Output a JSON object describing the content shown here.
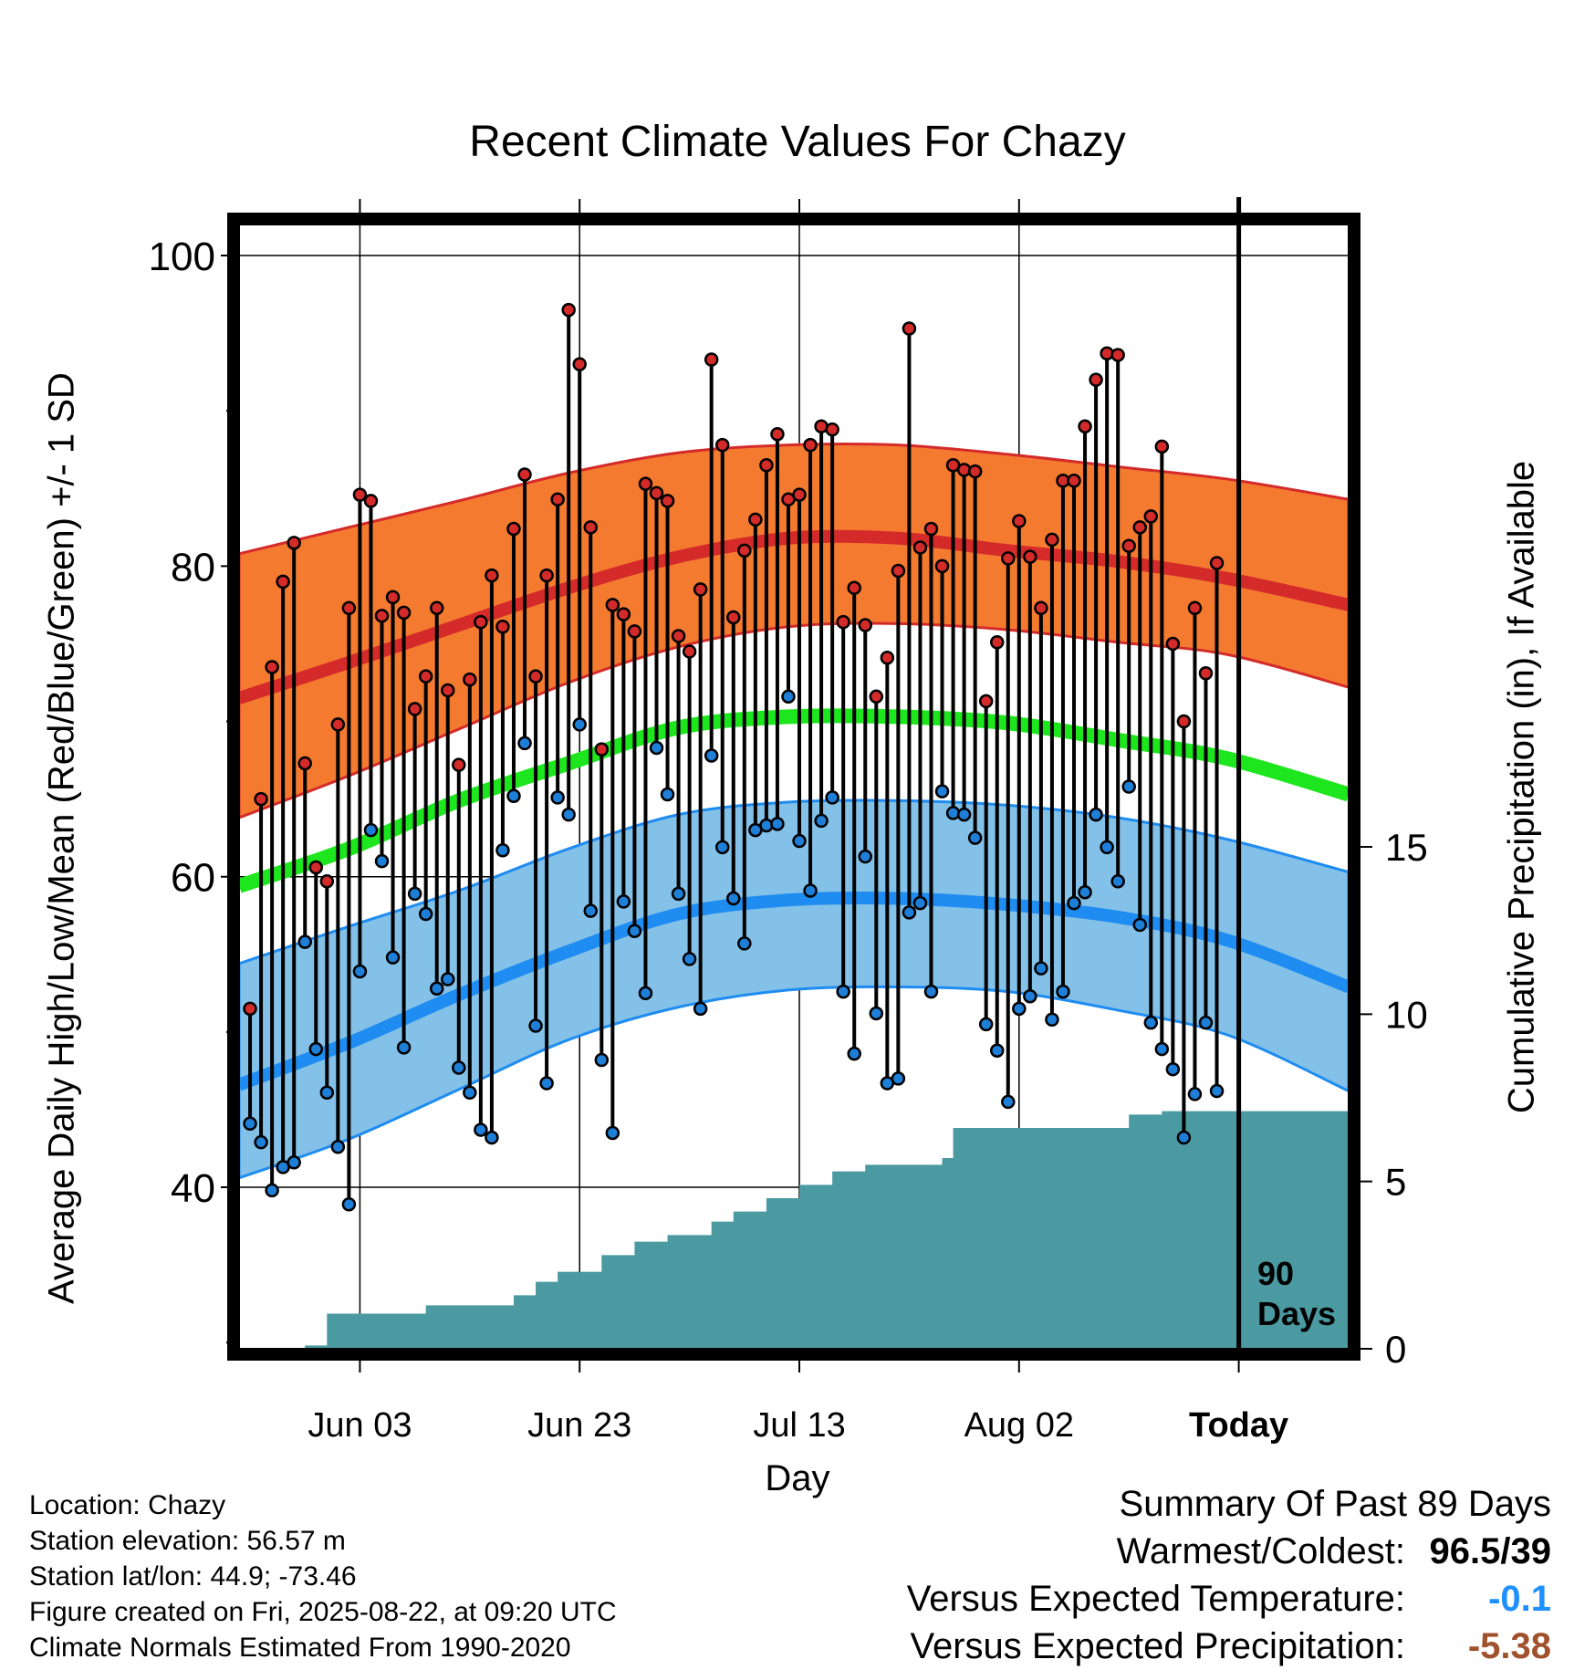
{
  "title": "Recent Climate Values For Chazy",
  "y_axis_left_label": "Average Daily High/Low/Mean (Red/Blue/Green) +/- 1 SD",
  "y_axis_right_label": "Cumulative Precipitation (in), If Available",
  "x_axis_label": "Day",
  "today_marker_label": "90 Days",
  "location_info": [
    "Location: Chazy",
    "Station elevation: 56.57 m",
    "Station lat/lon: 44.9; -73.46",
    "Figure created on Fri, 2025-08-22, at 09:20 UTC",
    "Climate Normals Estimated From 1990-2020"
  ],
  "summary": {
    "heading": "Summary Of Past 89 Days",
    "warmest_coldest_label": "Warmest/Coldest:",
    "warmest_coldest_value": "96.5/39",
    "temp_label": "Versus Expected Temperature:",
    "temp_value": "-0.1",
    "temp_color": "#1e90ff",
    "precip_label": "Versus Expected Precipitation:",
    "precip_value": "-5.38",
    "precip_color": "#a0522d"
  },
  "colors": {
    "high_band": "#f47a30",
    "high_line": "#d42a2a",
    "low_band": "#84c1e8",
    "low_line": "#1e8cf0",
    "mean_line": "#1ee61e",
    "precip_fill": "#4b9aa2",
    "high_point": "#d42a2a",
    "low_point": "#1e7fd8"
  },
  "chart_data": {
    "type": "line",
    "x_axis": {
      "start_date": "2025-05-23",
      "end_date": "2025-09-01",
      "ticks": [
        {
          "label": "Jun 03",
          "date": "2025-06-03"
        },
        {
          "label": "Jun 23",
          "date": "2025-06-23"
        },
        {
          "label": "Jul 13",
          "date": "2025-07-13"
        },
        {
          "label": "Aug 02",
          "date": "2025-08-02"
        },
        {
          "label": "Today",
          "date": "2025-08-22"
        }
      ],
      "today": "2025-08-22"
    },
    "y_axis_left": {
      "ylim": [
        29.6,
        102
      ],
      "ticks": [
        40,
        60,
        80,
        100
      ],
      "minor_ticks": [
        30,
        50,
        70,
        90
      ]
    },
    "y_axis_right": {
      "ylim": [
        0,
        33.6
      ],
      "ticks": [
        0,
        5,
        10,
        15
      ]
    },
    "grid": true,
    "normals": {
      "x": [
        "2025-05-23",
        "2025-06-02",
        "2025-06-12",
        "2025-06-22",
        "2025-07-02",
        "2025-07-12",
        "2025-07-22",
        "2025-08-01",
        "2025-08-11",
        "2025-08-21",
        "2025-09-01"
      ],
      "high_mean": [
        71.5,
        73.8,
        76.2,
        78.6,
        80.6,
        81.8,
        81.8,
        81.0,
        80.3,
        79.2,
        77.5
      ],
      "high_upper": [
        80.8,
        82.5,
        84.2,
        86.0,
        87.3,
        87.8,
        87.8,
        87.2,
        86.4,
        85.6,
        84.3
      ],
      "high_lower": [
        63.8,
        66.5,
        69.5,
        72.5,
        74.8,
        76.1,
        76.3,
        75.9,
        75.1,
        74.3,
        72.2
      ],
      "mean": [
        59.4,
        61.8,
        64.9,
        67.3,
        69.6,
        70.3,
        70.3,
        69.9,
        68.8,
        67.6,
        65.3
      ],
      "low_mean": [
        46.6,
        49.3,
        52.4,
        55.2,
        57.6,
        58.5,
        58.6,
        58.2,
        57.4,
        55.9,
        52.9
      ],
      "low_upper": [
        54.4,
        56.8,
        59.1,
        61.8,
        64.0,
        64.8,
        64.9,
        64.6,
        63.8,
        62.4,
        60.3
      ],
      "low_lower": [
        40.6,
        43.1,
        46.3,
        49.5,
        51.6,
        52.7,
        52.9,
        52.6,
        51.4,
        49.8,
        46.2
      ]
    },
    "daily": {
      "start_date": "2025-05-24",
      "high": [
        51.5,
        65,
        73.5,
        79,
        81.5,
        67.3,
        60.6,
        59.7,
        69.8,
        77.3,
        84.6,
        84.2,
        76.8,
        78,
        77,
        70.8,
        72.9,
        77.3,
        72,
        67.2,
        72.7,
        76.4,
        79.4,
        76.1,
        82.4,
        85.9,
        72.9,
        79.4,
        84.3,
        96.5,
        93,
        82.5,
        68.2,
        77.5,
        76.9,
        75.8,
        85.3,
        84.7,
        84.2,
        75.5,
        74.5,
        78.5,
        93.3,
        87.8,
        76.7,
        81,
        83,
        86.5,
        88.5,
        84.3,
        84.6,
        87.8,
        89,
        88.8,
        76.4,
        78.6,
        76.2,
        71.6,
        74.1,
        79.7,
        95.3,
        81.2,
        82.4,
        80,
        86.5,
        86.2,
        86.1,
        71.3,
        75.1,
        80.5,
        82.9,
        80.6,
        77.3,
        81.7,
        85.5,
        85.5,
        89,
        92,
        93.7,
        93.6,
        81.3,
        82.5,
        83.2,
        87.7,
        75,
        70,
        77.3,
        73.1,
        80.2
      ],
      "low": [
        44.1,
        42.9,
        39.8,
        41.3,
        41.6,
        55.8,
        48.9,
        46.1,
        42.6,
        38.9,
        53.9,
        63,
        61,
        54.8,
        49,
        58.9,
        57.6,
        52.8,
        53.4,
        47.7,
        46.1,
        43.7,
        43.2,
        61.7,
        65.2,
        68.6,
        50.4,
        46.7,
        65.1,
        64,
        69.8,
        57.8,
        48.2,
        43.5,
        58.4,
        56.5,
        52.5,
        68.3,
        65.3,
        58.9,
        54.7,
        51.5,
        67.8,
        61.9,
        58.6,
        55.7,
        63,
        63.3,
        63.4,
        71.6,
        62.3,
        59.1,
        63.6,
        65.1,
        52.6,
        48.6,
        61.3,
        51.2,
        46.7,
        47,
        57.7,
        58.3,
        52.6,
        65.5,
        64.1,
        64,
        62.5,
        50.5,
        48.8,
        45.5,
        51.5,
        52.3,
        54.1,
        50.8,
        52.6,
        58.3,
        59,
        64,
        61.9,
        59.7,
        65.8,
        56.9,
        50.6,
        48.9,
        47.6,
        43.2,
        46,
        50.6,
        46.2
      ]
    },
    "precip_cumulative": {
      "x": [
        "2025-05-23",
        "2025-05-29",
        "2025-05-31",
        "2025-06-09",
        "2025-06-17",
        "2025-06-19",
        "2025-06-21",
        "2025-06-25",
        "2025-06-28",
        "2025-07-01",
        "2025-07-05",
        "2025-07-07",
        "2025-07-10",
        "2025-07-13",
        "2025-07-16",
        "2025-07-19",
        "2025-07-26",
        "2025-07-27",
        "2025-08-02",
        "2025-08-12",
        "2025-08-15",
        "2025-09-01"
      ],
      "values": [
        0,
        0.1,
        1.05,
        1.3,
        1.6,
        2.0,
        2.3,
        2.8,
        3.2,
        3.4,
        3.8,
        4.1,
        4.5,
        4.9,
        5.3,
        5.5,
        5.7,
        6.6,
        6.6,
        7.0,
        7.1,
        7.1
      ]
    }
  }
}
